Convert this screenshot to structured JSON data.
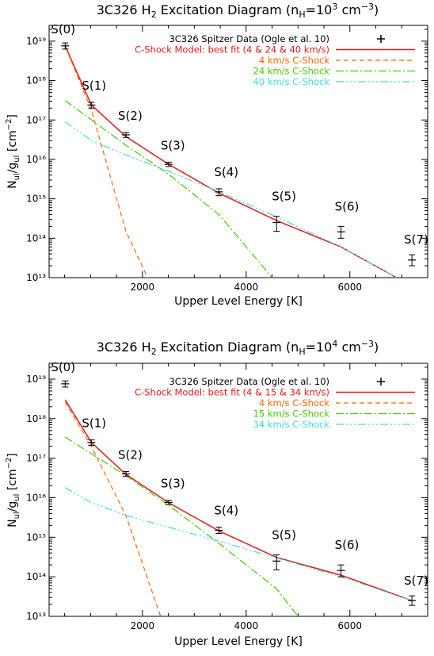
{
  "chart_data": [
    {
      "type": "line",
      "title": "3C326 H₂ Excitation Diagram (nₕ=10³ cm⁻³)",
      "xlabel": "Upper Level Energy [K]",
      "ylabel": "Nᵤₗ/gᵤₗ [cm⁻²]",
      "xlim": [
        200,
        7500
      ],
      "ylim_log10": [
        13,
        19.4
      ],
      "log_y": true,
      "x_ticks": [
        2000,
        4000,
        6000
      ],
      "x_tick_labels": [
        "2000",
        "4000",
        "6000"
      ],
      "y_ticks": [
        13,
        14,
        15,
        16,
        17,
        18,
        19
      ],
      "y_tick_labels": [
        "10¹³",
        "10¹⁴",
        "10¹⁵",
        "10¹⁶",
        "10¹⁷",
        "10¹⁸",
        "10¹⁹"
      ],
      "observed": {
        "name": "3C326 Spitzer Data (Ogle et al. 10)",
        "color": "#000000",
        "points": [
          {
            "label": "S(0)",
            "x": 510,
            "y": 7.6e+18,
            "ylow": 6.3e+18,
            "yhigh": 9e+18
          },
          {
            "label": "S(1)",
            "x": 1015,
            "y": 2.4e+17,
            "ylow": 2e+17,
            "yhigh": 2.8e+17
          },
          {
            "label": "S(2)",
            "x": 1682,
            "y": 4.2e+16,
            "ylow": 3.6e+16,
            "yhigh": 4.8e+16
          },
          {
            "label": "S(3)",
            "x": 2504,
            "y": 7500000000000000.0,
            "ylow": 6600000000000000.0,
            "yhigh": 8500000000000000.0
          },
          {
            "label": "S(4)",
            "x": 3474,
            "y": 1500000000000000.0,
            "ylow": 1200000000000000.0,
            "yhigh": 1800000000000000.0
          },
          {
            "label": "S(5)",
            "x": 4586,
            "y": 250000000000000.0,
            "ylow": 150000000000000.0,
            "yhigh": 360000000000000.0
          },
          {
            "label": "S(6)",
            "x": 5829,
            "y": 145000000000000.0,
            "ylow": 100000000000000.0,
            "yhigh": 200000000000000.0
          },
          {
            "label": "S(7)",
            "x": 7197,
            "y": 28000000000000.0,
            "ylow": 20000000000000.0,
            "yhigh": 38000000000000.0
          }
        ]
      },
      "series": [
        {
          "name": "C-Shock Model: best fit (4 & 24 & 40 km/s)",
          "color": "#e41a1c",
          "dash": "",
          "x": [
            510,
            1015,
            1682,
            2504,
            3474,
            4586,
            5829,
            6900
          ],
          "y": [
            7.6e+18,
            2.4e+17,
            3.8e+16,
            7500000000000000.0,
            1400000000000000.0,
            280000000000000.0,
            60000000000000.0,
            10000000000000.0
          ]
        },
        {
          "name": "4 km/s C-Shock",
          "color": "#ff6600",
          "dash": "6,4",
          "x": [
            510,
            1015,
            1682,
            2100
          ],
          "y": [
            7.4e+18,
            1.8e+17,
            150000000000000.0,
            10000000000000.0
          ]
        },
        {
          "name": "24 km/s C-Shock",
          "color": "#44cc00",
          "dash": "10,3,2,3",
          "x": [
            510,
            1015,
            1682,
            2504,
            3474,
            4500
          ],
          "y": [
            3.1e+17,
            1e+17,
            2.3e+16,
            4200000000000000.0,
            400000000000000.0,
            10000000000000.0
          ]
        },
        {
          "name": "40 km/s C-Shock",
          "color": "#40e0d0",
          "dash": "10,3,2,3,2,3,2,3",
          "x": [
            510,
            1015,
            1682,
            2504,
            3474,
            4586,
            5829,
            6900
          ],
          "y": [
            9e+16,
            3e+16,
            1.3e+16,
            5000000000000000.0,
            1500000000000000.0,
            350000000000000.0,
            60000000000000.0,
            10000000000000.0
          ]
        }
      ]
    },
    {
      "type": "line",
      "title": "3C326 H₂ Excitation Diagram (nₕ=10⁴ cm⁻³)",
      "xlabel": "Upper Level Energy [K]",
      "ylabel": "Nᵤₗ/gᵤₗ [cm⁻²]",
      "xlim": [
        200,
        7500
      ],
      "ylim_log10": [
        13,
        19.4
      ],
      "log_y": true,
      "x_ticks": [
        2000,
        4000,
        6000
      ],
      "x_tick_labels": [
        "2000",
        "4000",
        "6000"
      ],
      "y_ticks": [
        13,
        14,
        15,
        16,
        17,
        18,
        19
      ],
      "y_tick_labels": [
        "10¹³",
        "10¹⁴",
        "10¹⁵",
        "10¹⁶",
        "10¹⁷",
        "10¹⁸",
        "10¹⁹"
      ],
      "observed": {
        "name": "3C326 Spitzer Data (Ogle et al. 10)",
        "color": "#000000",
        "points": [
          {
            "label": "S(0)",
            "x": 510,
            "y": 7.6e+18,
            "ylow": 6.3e+18,
            "yhigh": 9e+18
          },
          {
            "label": "S(1)",
            "x": 1015,
            "y": 2.5e+17,
            "ylow": 2.1e+17,
            "yhigh": 2.9e+17
          },
          {
            "label": "S(2)",
            "x": 1682,
            "y": 4e+16,
            "ylow": 3.5e+16,
            "yhigh": 4.6e+16
          },
          {
            "label": "S(3)",
            "x": 2504,
            "y": 7600000000000000.0,
            "ylow": 6700000000000000.0,
            "yhigh": 8600000000000000.0
          },
          {
            "label": "S(4)",
            "x": 3474,
            "y": 1500000000000000.0,
            "ylow": 1250000000000000.0,
            "yhigh": 1800000000000000.0
          },
          {
            "label": "S(5)",
            "x": 4586,
            "y": 250000000000000.0,
            "ylow": 150000000000000.0,
            "yhigh": 360000000000000.0
          },
          {
            "label": "S(6)",
            "x": 5829,
            "y": 145000000000000.0,
            "ylow": 100000000000000.0,
            "yhigh": 200000000000000.0
          },
          {
            "label": "S(7)",
            "x": 7197,
            "y": 25000000000000.0,
            "ylow": 19000000000000.0,
            "yhigh": 33000000000000.0
          }
        ]
      },
      "series": [
        {
          "name": "C-Shock Model: best fit (4 & 15 & 34 km/s)",
          "color": "#e41a1c",
          "dash": "",
          "x": [
            510,
            1015,
            1682,
            2504,
            3474,
            4586,
            5829,
            7197
          ],
          "y": [
            3e+18,
            2.5e+17,
            3.9e+16,
            7500000000000000.0,
            1450000000000000.0,
            310000000000000.0,
            110000000000000.0,
            25000000000000.0
          ]
        },
        {
          "name": "4 km/s C-Shock",
          "color": "#ff6600",
          "dash": "6,4",
          "x": [
            510,
            1015,
            1682,
            2350
          ],
          "y": [
            2.6e+18,
            2e+17,
            3500000000000000.0,
            10000000000000.0
          ]
        },
        {
          "name": "15 km/s C-Shock",
          "color": "#44cc00",
          "dash": "10,3,2,3",
          "x": [
            510,
            1015,
            1682,
            2504,
            3474,
            4586,
            5000
          ],
          "y": [
            3.4e+17,
            1.3e+17,
            3.6e+16,
            6400000000000000.0,
            700000000000000.0,
            50000000000000.0,
            10000000000000.0
          ]
        },
        {
          "name": "34 km/s C-Shock",
          "color": "#40e0d0",
          "dash": "10,3,2,3,2,3,2,3",
          "x": [
            510,
            1015,
            1682,
            2504,
            3474,
            4586,
            5829,
            7197
          ],
          "y": [
            1.8e+16,
            7500000000000000.0,
            3600000000000000.0,
            1800000000000000.0,
            800000000000000.0,
            300000000000000.0,
            100000000000000.0,
            25000000000000.0
          ]
        }
      ]
    }
  ]
}
